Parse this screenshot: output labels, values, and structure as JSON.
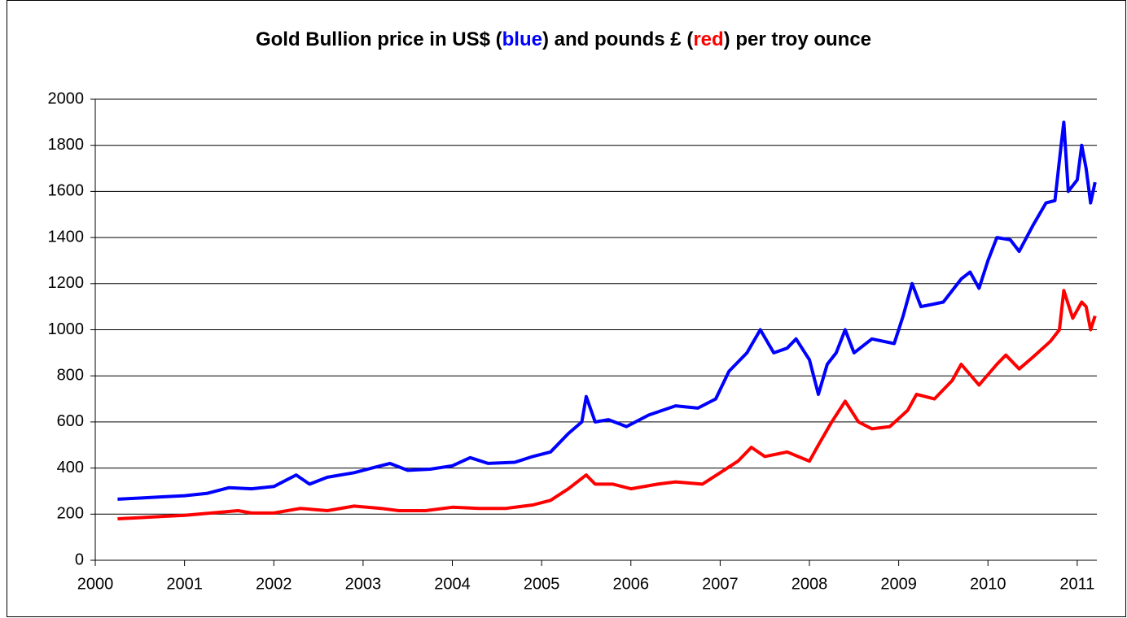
{
  "chart_data": {
    "type": "line",
    "title": [
      {
        "text": "Gold Bullion price in US$ ("
      },
      {
        "text": "blue",
        "color": "#0000ff"
      },
      {
        "text": ") and pounds £ ("
      },
      {
        "text": "red",
        "color": "#ff0000"
      },
      {
        "text": ") per troy ounce"
      }
    ],
    "xlim": [
      2000,
      2011.22
    ],
    "xticks": [
      2000,
      2001,
      2002,
      2003,
      2004,
      2005,
      2006,
      2007,
      2008,
      2009,
      2010,
      2011
    ],
    "ylim": [
      0,
      2000
    ],
    "yticks": [
      0,
      200,
      400,
      600,
      800,
      1000,
      1200,
      1400,
      1600,
      1800,
      2000
    ],
    "grid": true,
    "series": [
      {
        "color": "#0000ff",
        "x": [
          2000.25,
          2000.5,
          2000.75,
          2001.0,
          2001.25,
          2001.5,
          2001.75,
          2002.0,
          2002.25,
          2002.4,
          2002.6,
          2002.9,
          2003.1,
          2003.3,
          2003.5,
          2003.75,
          2004.0,
          2004.2,
          2004.4,
          2004.7,
          2004.9,
          2005.1,
          2005.3,
          2005.45,
          2005.5,
          2005.6,
          2005.75,
          2005.95,
          2006.2,
          2006.5,
          2006.75,
          2006.95,
          2007.1,
          2007.3,
          2007.45,
          2007.6,
          2007.75,
          2007.85,
          2008.0,
          2008.1,
          2008.2,
          2008.3,
          2008.4,
          2008.5,
          2008.7,
          2008.95,
          2009.05,
          2009.15,
          2009.25,
          2009.5,
          2009.7,
          2009.8,
          2009.9,
          2010.0,
          2010.1,
          2010.25,
          2010.35,
          2010.5,
          2010.65,
          2010.75,
          2010.82,
          2010.85,
          2010.9,
          2011.0,
          2011.05,
          2011.1,
          2011.15,
          2011.2
        ],
        "values": [
          265,
          270,
          275,
          280,
          290,
          315,
          310,
          320,
          370,
          330,
          360,
          380,
          400,
          420,
          390,
          395,
          410,
          445,
          420,
          425,
          450,
          470,
          550,
          600,
          710,
          600,
          610,
          580,
          630,
          670,
          660,
          700,
          820,
          900,
          1000,
          900,
          920,
          960,
          870,
          720,
          850,
          900,
          1000,
          900,
          960,
          940,
          1060,
          1200,
          1100,
          1120,
          1220,
          1250,
          1180,
          1300,
          1400,
          1390,
          1340,
          1450,
          1550,
          1560,
          1800,
          1900,
          1600,
          1650,
          1800,
          1700,
          1550,
          1640
        ]
      },
      {
        "color": "#ff0000",
        "x": [
          2000.25,
          2000.5,
          2000.75,
          2001.0,
          2001.3,
          2001.6,
          2001.75,
          2002.0,
          2002.3,
          2002.6,
          2002.9,
          2003.2,
          2003.4,
          2003.7,
          2004.0,
          2004.3,
          2004.6,
          2004.9,
          2005.1,
          2005.3,
          2005.5,
          2005.6,
          2005.8,
          2006.0,
          2006.3,
          2006.5,
          2006.8,
          2007.0,
          2007.2,
          2007.35,
          2007.5,
          2007.75,
          2008.0,
          2008.1,
          2008.25,
          2008.4,
          2008.55,
          2008.7,
          2008.9,
          2009.1,
          2009.2,
          2009.4,
          2009.6,
          2009.7,
          2009.9,
          2010.1,
          2010.2,
          2010.35,
          2010.5,
          2010.7,
          2010.8,
          2010.85,
          2010.95,
          2011.05,
          2011.1,
          2011.15,
          2011.2
        ],
        "values": [
          180,
          185,
          190,
          195,
          205,
          215,
          205,
          205,
          225,
          215,
          235,
          225,
          215,
          215,
          230,
          225,
          225,
          240,
          260,
          310,
          370,
          330,
          330,
          310,
          330,
          340,
          330,
          380,
          430,
          490,
          450,
          470,
          430,
          500,
          600,
          690,
          600,
          570,
          580,
          650,
          720,
          700,
          780,
          850,
          760,
          850,
          890,
          830,
          880,
          950,
          1000,
          1170,
          1050,
          1120,
          1100,
          1000,
          1060
        ]
      }
    ]
  }
}
